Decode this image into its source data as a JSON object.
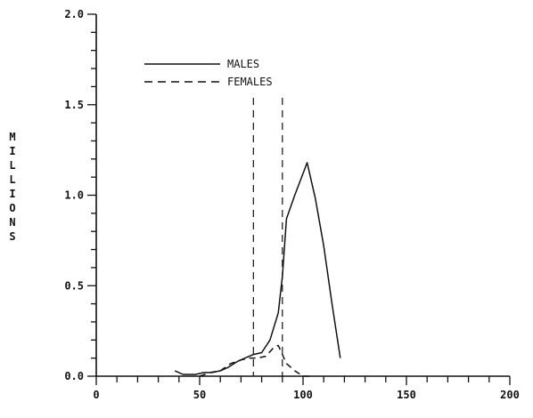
{
  "chart_data": {
    "type": "line",
    "title": "",
    "xlabel": "",
    "ylabel": "MILLIONS",
    "xlim": [
      0,
      200
    ],
    "ylim": [
      0.0,
      2.0
    ],
    "x_ticks": [
      "0",
      "50",
      "100",
      "150",
      "200"
    ],
    "y_ticks": [
      "0.0",
      "0.5",
      "1.0",
      "1.5",
      "2.0"
    ],
    "x_minor_step": 10,
    "y_minor_step": 0.1,
    "grid": false,
    "legend": "top-left",
    "series": [
      {
        "name": "MALES",
        "style": "solid",
        "color": "#111111",
        "x": [
          38,
          42,
          48,
          52,
          56,
          60,
          64,
          68,
          72,
          76,
          80,
          84,
          88,
          90,
          92,
          96,
          100,
          102,
          106,
          110,
          114,
          118
        ],
        "y": [
          0.03,
          0.01,
          0.01,
          0.02,
          0.02,
          0.03,
          0.05,
          0.08,
          0.1,
          0.12,
          0.13,
          0.2,
          0.35,
          0.55,
          0.87,
          1.0,
          1.12,
          1.18,
          0.98,
          0.72,
          0.4,
          0.1
        ]
      },
      {
        "name": "FEMALES",
        "style": "dashed",
        "color": "#111111",
        "x": [
          50,
          55,
          60,
          65,
          70,
          74,
          78,
          82,
          86,
          88,
          90,
          92,
          96,
          100,
          104
        ],
        "y": [
          0.0,
          0.02,
          0.03,
          0.07,
          0.09,
          0.1,
          0.1,
          0.11,
          0.16,
          0.17,
          0.12,
          0.07,
          0.03,
          0.0,
          0.0
        ]
      }
    ],
    "vertical_lines": [
      {
        "x": 76,
        "style": "dashed"
      },
      {
        "x": 90,
        "style": "dashed"
      }
    ]
  }
}
